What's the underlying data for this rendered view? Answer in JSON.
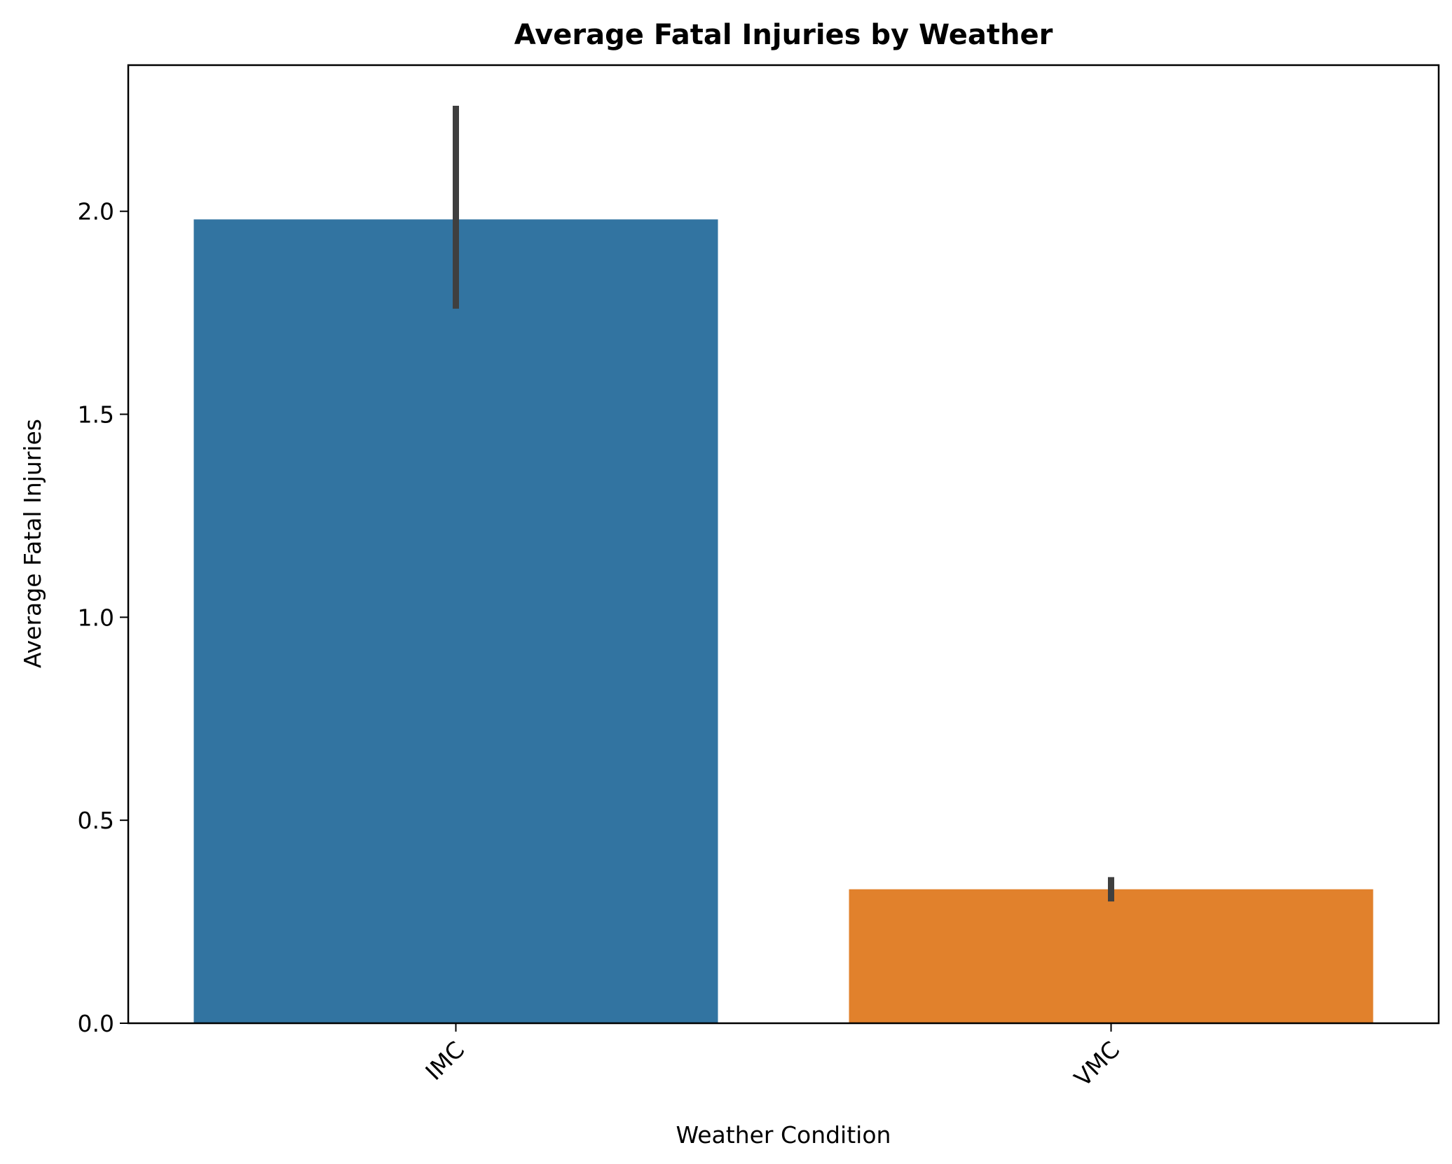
{
  "chart_data": {
    "type": "bar",
    "title": "Average Fatal Injuries by Weather",
    "xlabel": "Weather Condition",
    "ylabel": "Average Fatal Injuries",
    "categories": [
      "IMC",
      "VMC"
    ],
    "values": [
      1.98,
      0.33
    ],
    "error_bars": [
      {
        "low": 1.76,
        "high": 2.26
      },
      {
        "low": 0.3,
        "high": 0.36
      }
    ],
    "colors": [
      "#3274a1",
      "#e1812c"
    ],
    "error_bar_color": "#3f3f3f",
    "ylim": [
      0,
      2.36
    ],
    "yticks": [
      0.0,
      0.5,
      1.0,
      1.5,
      2.0
    ],
    "ytick_labels": [
      "0.0",
      "0.5",
      "1.0",
      "1.5",
      "2.0"
    ],
    "grid": false,
    "legend": "none",
    "xtick_rotation": 45
  }
}
